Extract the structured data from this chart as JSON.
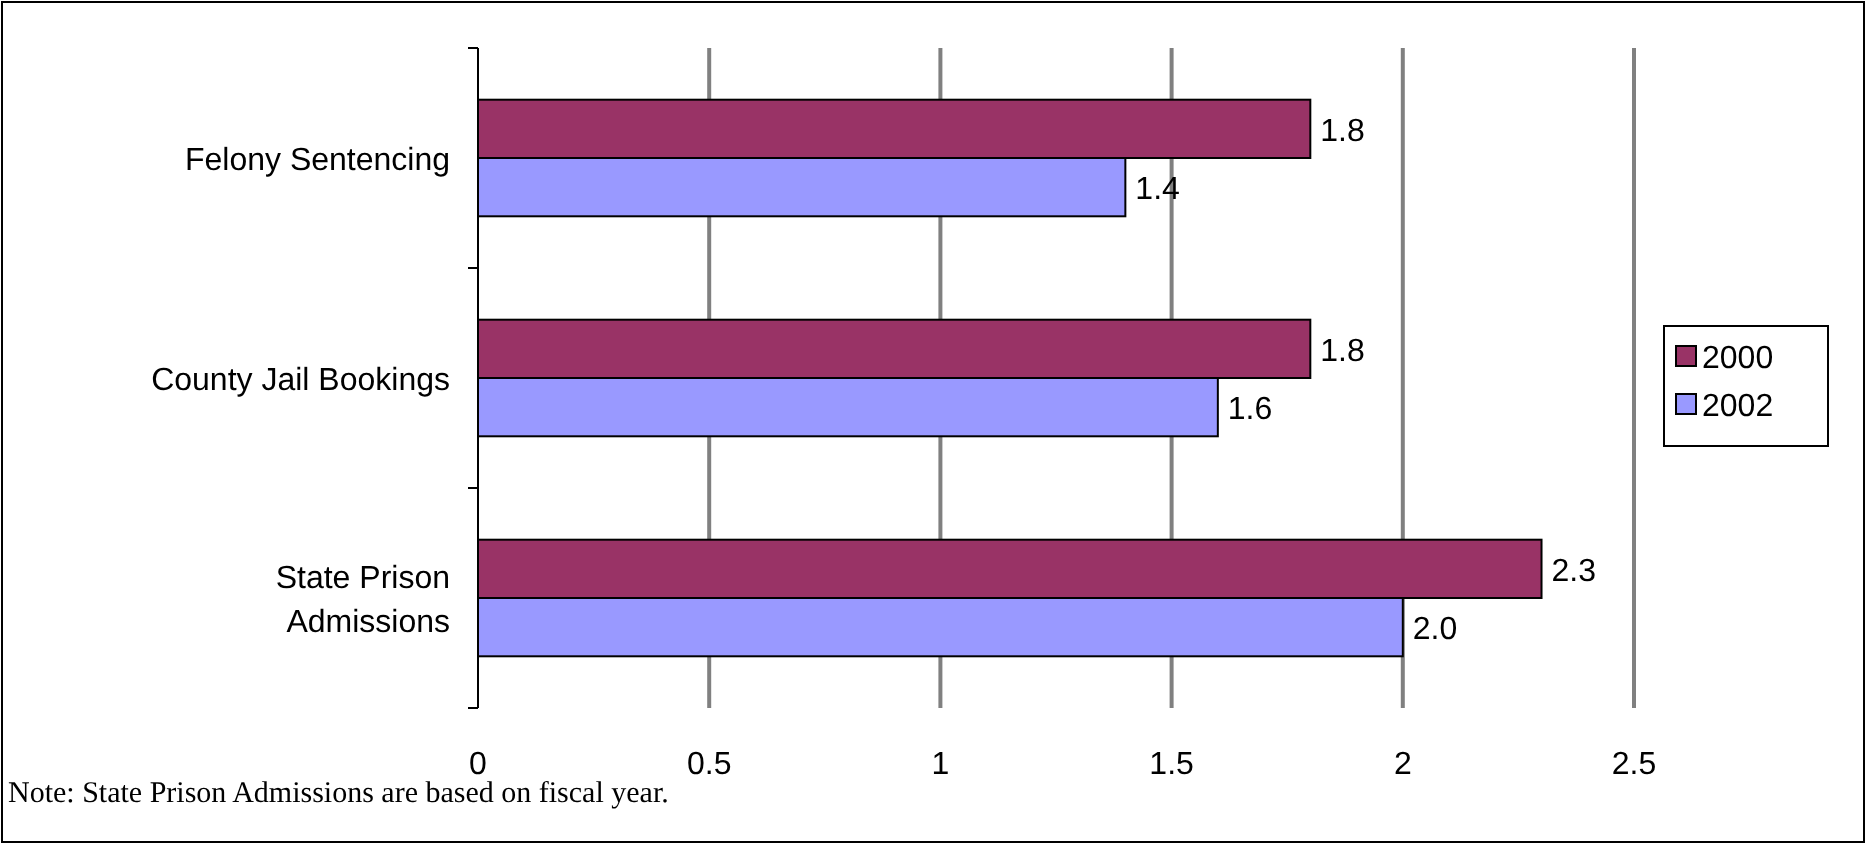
{
  "chart_data": {
    "type": "bar",
    "orientation": "horizontal",
    "categories": [
      "Felony Sentencing",
      "County Jail Bookings",
      "State Prison Admissions"
    ],
    "series": [
      {
        "name": "2000",
        "color": "#993366",
        "values": [
          1.8,
          1.8,
          2.3
        ],
        "value_labels": [
          "1.8",
          "1.8",
          "2.3"
        ]
      },
      {
        "name": "2002",
        "color": "#9999ff",
        "values": [
          1.4,
          1.6,
          2.0
        ],
        "value_labels": [
          "1.4",
          "1.6",
          "2.0"
        ]
      }
    ],
    "xlim": [
      0,
      2.5
    ],
    "xticks": [
      0,
      0.5,
      1,
      1.5,
      2,
      2.5
    ],
    "grid": "x",
    "legend": "right",
    "annotations": [
      "Note: State Prison Admissions are based on fiscal year."
    ]
  }
}
